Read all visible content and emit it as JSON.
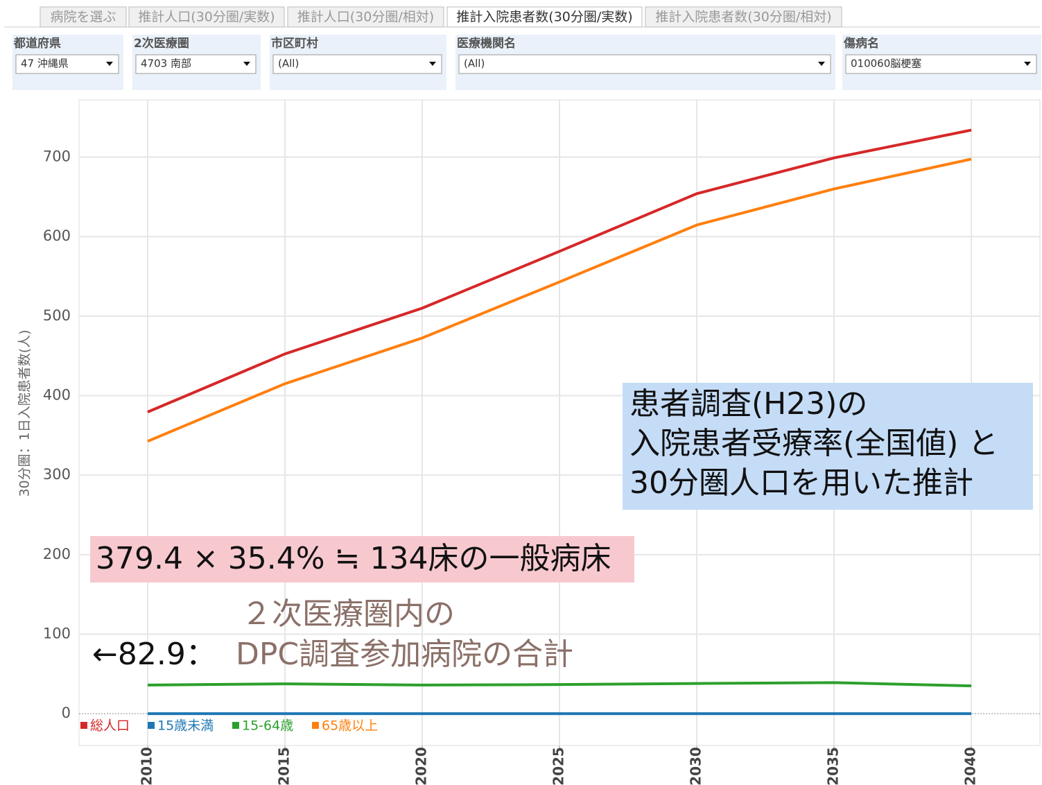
{
  "tabs": [
    "病院を選ぶ",
    "推計人口(30分圏/実数)",
    "推計人口(30分圏/相対)",
    "推計入院患者数(30分圏/実数)",
    "推計入院患者数(30分圏/相対)"
  ],
  "selected_tab": 3,
  "filters": [
    {
      "label": "都道府県",
      "value": "47 沖縄県"
    },
    {
      "label": "2次医療圏",
      "value": "4703 南部"
    },
    {
      "label": "市区町村",
      "value": "(All)"
    },
    {
      "label": "医療機関名",
      "value": "(All)"
    },
    {
      "label": "傷病名",
      "value": "010060脳梗塞"
    }
  ],
  "chart_data": {
    "type": "line",
    "y_label": "30分圏：1日入院患者数(人)",
    "x": [
      2010,
      2015,
      2020,
      2025,
      2030,
      2035,
      2040
    ],
    "xlim": [
      2007.5,
      2042.5
    ],
    "xticks": [
      2010,
      2015,
      2020,
      2025,
      2030,
      2035,
      2040
    ],
    "ylim": [
      -40,
      772
    ],
    "yticks": [
      0,
      100,
      200,
      300,
      400,
      500,
      600,
      700
    ],
    "grid": true,
    "series": [
      {
        "name": "総人口",
        "color": "#d62728",
        "values": [
          379.4,
          452.5,
          510,
          581.5,
          654,
          699,
          734
        ]
      },
      {
        "name": "15歳未満",
        "color": "#1f77b4",
        "values": [
          0,
          0,
          0,
          0,
          0,
          0,
          0
        ]
      },
      {
        "name": "15-64歳",
        "color": "#2ca02c",
        "values": [
          36,
          37.5,
          36,
          36.6,
          38,
          39,
          35
        ]
      },
      {
        "name": "65歳以上",
        "color": "#ff7f0e",
        "values": [
          342.6,
          415,
          472.5,
          543,
          614.6,
          660,
          697.5
        ]
      }
    ],
    "annotations": {
      "blue_box": [
        "患者調査(H23)の",
        "入院患者受療率(全国値) と",
        "30分圏人口を用いた推計"
      ],
      "pink_box": "379.4 × 35.4% ≒ 134床の一般病床",
      "dpc_note": [
        "２次医療圏内の",
        "DPC調査参加病院の合計"
      ],
      "arrow_label": "←82.9："
    }
  }
}
